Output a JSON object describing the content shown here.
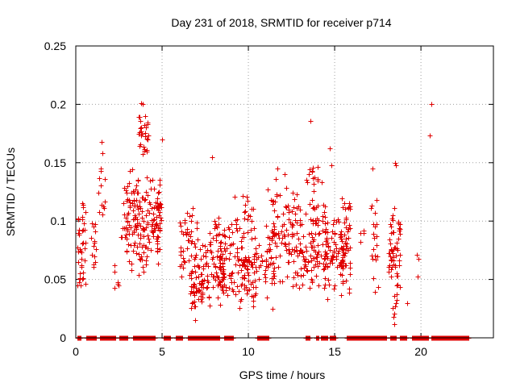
{
  "chart_data": {
    "type": "scatter",
    "title": "Day 231 of 2018, SRMTID for receiver p714",
    "xlabel": "GPS time / hours",
    "ylabel": "SRMTID / TECUs",
    "xlim": [
      0,
      24.2
    ],
    "ylim": [
      0,
      0.25
    ],
    "xticks": [
      0,
      5,
      10,
      15,
      20
    ],
    "yticks": [
      0,
      0.05,
      0.1,
      0.15,
      0.2,
      0.25
    ],
    "xtick_labels": [
      "0",
      "5",
      "10",
      "15",
      "20"
    ],
    "ytick_labels": [
      "0",
      "0.05",
      "0.1",
      "0.15",
      "0.2",
      "0.25"
    ],
    "grid": true,
    "marker": "+",
    "color": "#e00000",
    "zero_segments": [
      [
        0.1,
        0.3
      ],
      [
        0.6,
        1.2
      ],
      [
        1.4,
        2.3
      ],
      [
        2.5,
        3.0
      ],
      [
        3.3,
        4.6
      ],
      [
        5.1,
        5.5
      ],
      [
        5.8,
        6.2
      ],
      [
        6.5,
        8.3
      ],
      [
        8.6,
        9.1
      ],
      [
        10.5,
        11.2
      ],
      [
        13.3,
        13.6
      ],
      [
        13.9,
        14.1
      ],
      [
        14.2,
        14.6
      ],
      [
        14.7,
        15.1
      ],
      [
        15.7,
        18.0
      ],
      [
        18.2,
        18.6
      ],
      [
        18.8,
        19.2
      ],
      [
        19.5,
        20.4
      ],
      [
        20.6,
        22.8
      ]
    ],
    "clusters": [
      {
        "x": [
          0.1,
          0.55
        ],
        "y": [
          0.035,
          0.125
        ],
        "n": 40
      },
      {
        "x": [
          0.9,
          1.2
        ],
        "y": [
          0.05,
          0.115
        ],
        "n": 14
      },
      {
        "x": [
          1.3,
          1.75
        ],
        "y": [
          0.085,
          0.17
        ],
        "n": 12
      },
      {
        "x": [
          2.2,
          2.5
        ],
        "y": [
          0.03,
          0.065
        ],
        "n": 6
      },
      {
        "x": [
          2.6,
          3.0
        ],
        "y": [
          0.06,
          0.135
        ],
        "n": 10
      },
      {
        "x": [
          2.9,
          4.9
        ],
        "y": [
          0.05,
          0.15
        ],
        "n": 170
      },
      {
        "x": [
          3.6,
          4.2
        ],
        "y": [
          0.15,
          0.2
        ],
        "n": 25
      },
      {
        "x": [
          4.6,
          5.0
        ],
        "y": [
          0.047,
          0.14
        ],
        "n": 18
      },
      {
        "x": [
          6.0,
          7.1
        ],
        "y": [
          0.04,
          0.125
        ],
        "n": 50
      },
      {
        "x": [
          6.6,
          7.4
        ],
        "y": [
          0.015,
          0.06
        ],
        "n": 35
      },
      {
        "x": [
          7.1,
          8.6
        ],
        "y": [
          0.025,
          0.095
        ],
        "n": 80
      },
      {
        "x": [
          8.0,
          8.3
        ],
        "y": [
          0.08,
          0.115
        ],
        "n": 8
      },
      {
        "x": [
          8.3,
          10.4
        ],
        "y": [
          0.02,
          0.1
        ],
        "n": 140
      },
      {
        "x": [
          9.2,
          10.3
        ],
        "y": [
          0.08,
          0.125
        ],
        "n": 20
      },
      {
        "x": [
          10.3,
          11.1
        ],
        "y": [
          0.03,
          0.1
        ],
        "n": 30
      },
      {
        "x": [
          11.1,
          12.9
        ],
        "y": [
          0.035,
          0.14
        ],
        "n": 120
      },
      {
        "x": [
          12.9,
          14.6
        ],
        "y": [
          0.03,
          0.125
        ],
        "n": 110
      },
      {
        "x": [
          13.3,
          14.4
        ],
        "y": [
          0.12,
          0.155
        ],
        "n": 15
      },
      {
        "x": [
          14.4,
          15.5
        ],
        "y": [
          0.04,
          0.11
        ],
        "n": 70
      },
      {
        "x": [
          15.3,
          15.9
        ],
        "y": [
          0.03,
          0.13
        ],
        "n": 55
      },
      {
        "x": [
          16.5,
          16.7
        ],
        "y": [
          0.08,
          0.1
        ],
        "n": 3
      },
      {
        "x": [
          17.1,
          17.5
        ],
        "y": [
          0.03,
          0.145
        ],
        "n": 22
      },
      {
        "x": [
          18.1,
          18.8
        ],
        "y": [
          0.035,
          0.115
        ],
        "n": 55
      },
      {
        "x": [
          18.3,
          18.6
        ],
        "y": [
          0.015,
          0.05
        ],
        "n": 8
      },
      {
        "x": [
          19.7,
          19.95
        ],
        "y": [
          0.045,
          0.08
        ],
        "n": 3
      }
    ],
    "points": [
      [
        3.8,
        0.201
      ],
      [
        3.9,
        0.2
      ],
      [
        4.0,
        0.19
      ],
      [
        3.95,
        0.182
      ],
      [
        3.85,
        0.175
      ],
      [
        13.6,
        0.186
      ],
      [
        20.6,
        0.2
      ],
      [
        20.5,
        0.173
      ],
      [
        7.9,
        0.155
      ],
      [
        1.5,
        0.168
      ],
      [
        1.55,
        0.158
      ],
      [
        1.45,
        0.143
      ],
      [
        5.0,
        0.17
      ],
      [
        14.7,
        0.162
      ],
      [
        14.8,
        0.148
      ],
      [
        11.7,
        0.145
      ],
      [
        17.2,
        0.145
      ],
      [
        18.5,
        0.15
      ],
      [
        18.55,
        0.148
      ],
      [
        19.2,
        0.03
      ],
      [
        18.4,
        0.018
      ],
      [
        18.45,
        0.012
      ],
      [
        11.4,
        0.025
      ],
      [
        6.9,
        0.015
      ],
      [
        12.1,
        0.14
      ],
      [
        16.5,
        0.082
      ]
    ]
  }
}
